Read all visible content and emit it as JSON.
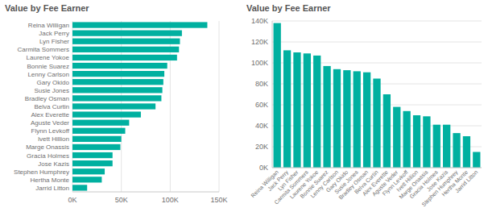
{
  "chart_data": [
    {
      "type": "bar",
      "orientation": "horizontal",
      "title": "Value by Fee Earner",
      "categories": [
        "Reina Willigan",
        "Jack Perry",
        "Lyn Fisher",
        "Carmita Sommers",
        "Laurene Yokoe",
        "Bonnie Suarez",
        "Lenny Carlson",
        "Gary Okido",
        "Susie Jones",
        "Bradley Osman",
        "Belva Curtin",
        "Alex Everette",
        "Aguste Veder",
        "Flynn Levkoff",
        "Ivett Hillion",
        "Marge Onassis",
        "Gracia Holmes",
        "Jose Kazis",
        "Stephen Humphrey",
        "Hertha Monte",
        "Jarrid Litton"
      ],
      "values": [
        138000,
        112000,
        110000,
        109000,
        107000,
        97000,
        94000,
        93000,
        92000,
        91000,
        85000,
        70000,
        58000,
        54000,
        50000,
        49000,
        41000,
        41000,
        33000,
        30000,
        15000
      ],
      "color": "#00b0a0",
      "xlim": [
        0,
        150000
      ],
      "xticks": [
        {
          "value": 0,
          "label": "0K"
        },
        {
          "value": 50000,
          "label": "50K"
        },
        {
          "value": 100000,
          "label": "100K"
        },
        {
          "value": 150000,
          "label": "150K"
        }
      ],
      "grid": true
    },
    {
      "type": "bar",
      "title": "Value by Fee Earner",
      "categories": [
        "Reina Willigan",
        "Jack Perry",
        "Lyn Fisher",
        "Carmita Sommers",
        "Laurene Yokoe",
        "Bonnie Suarez",
        "Lenny Carlson",
        "Gary Okido",
        "Susie Jones",
        "Bradley Osman",
        "Belva Curtin",
        "Alex Everette",
        "Aguste Veder",
        "Flynn Levkoff",
        "Ivett Hillion",
        "Marge Onassis",
        "Gracia Holmes",
        "Jose Kazis",
        "Stephen Humphrey",
        "Hertha Monte",
        "Jarrid Litton"
      ],
      "values": [
        138000,
        112000,
        110000,
        109000,
        107000,
        97000,
        94000,
        93000,
        92000,
        91000,
        85000,
        70000,
        58000,
        54000,
        50000,
        49000,
        41000,
        41000,
        33000,
        30000,
        15000
      ],
      "color": "#00b0a0",
      "ylim": [
        0,
        140000
      ],
      "yticks": [
        {
          "value": 0,
          "label": "0K"
        },
        {
          "value": 20000,
          "label": "20K"
        },
        {
          "value": 40000,
          "label": "40K"
        },
        {
          "value": 60000,
          "label": "60K"
        },
        {
          "value": 80000,
          "label": "80K"
        },
        {
          "value": 100000,
          "label": "100K"
        },
        {
          "value": 120000,
          "label": "120K"
        },
        {
          "value": 140000,
          "label": "140K"
        }
      ],
      "grid": true
    }
  ]
}
